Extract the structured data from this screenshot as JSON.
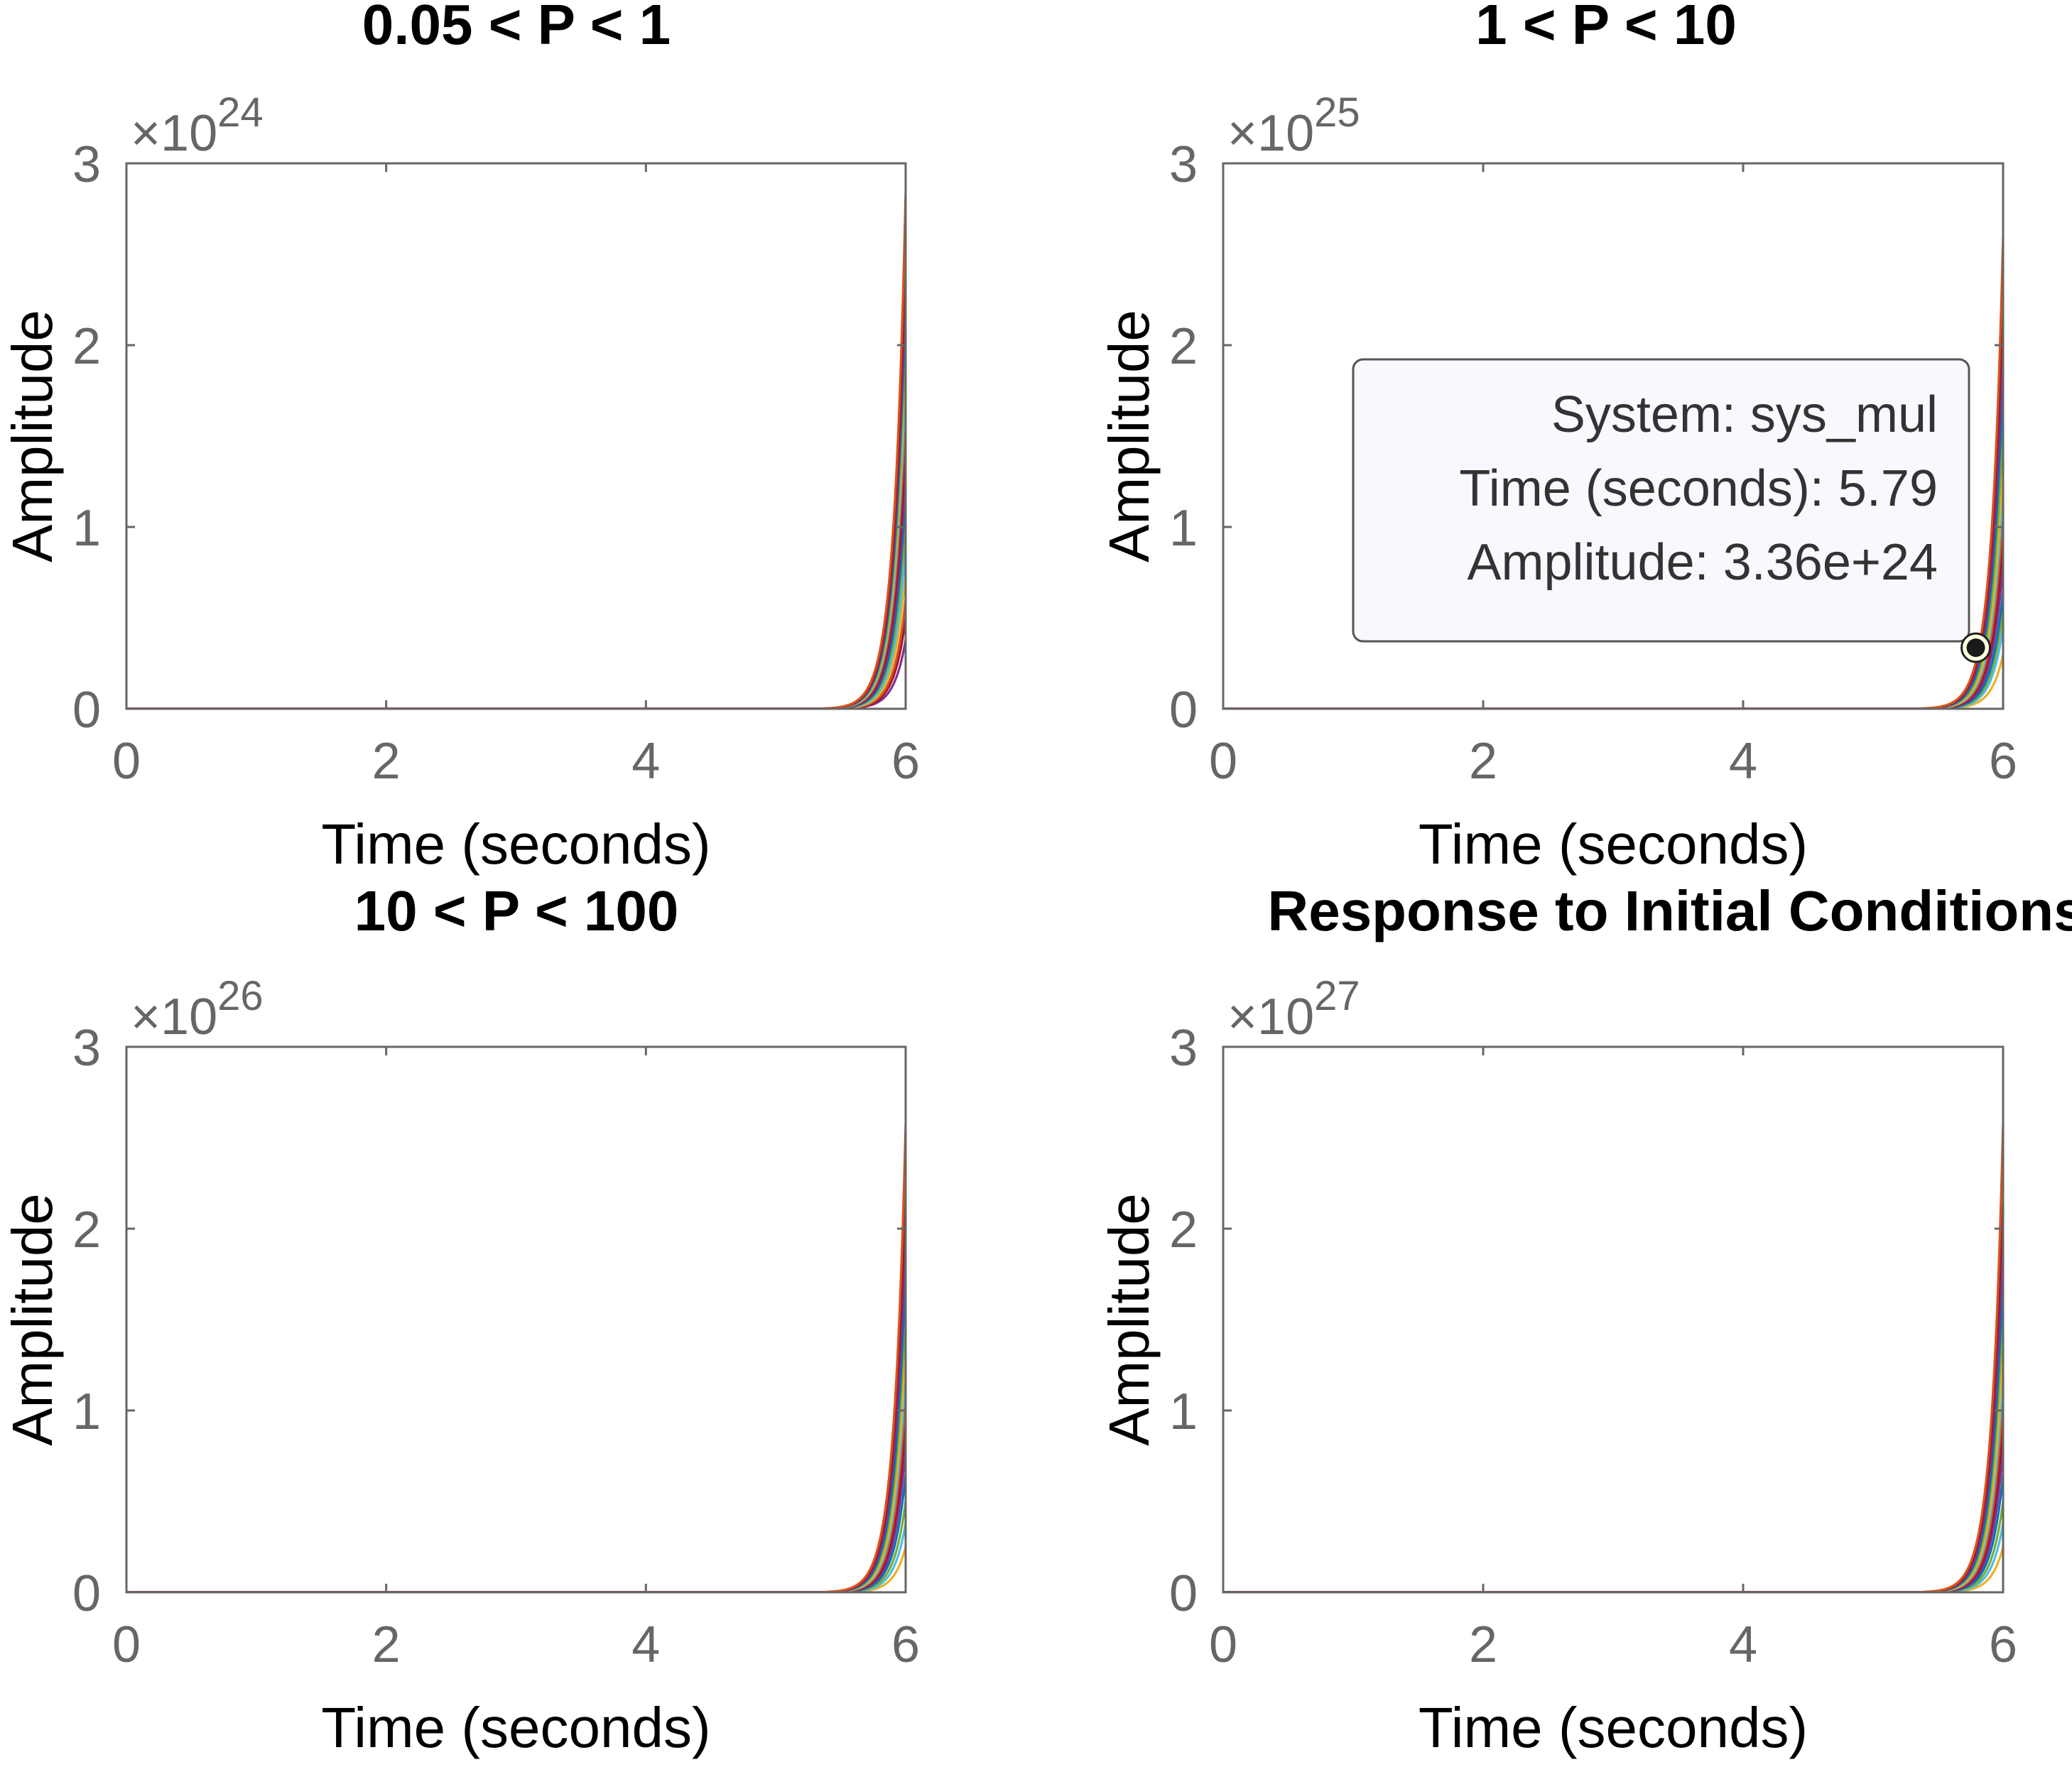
{
  "chart_data": [
    {
      "type": "line",
      "title": "0.05 < P < 1",
      "xlabel": "Time (seconds)",
      "ylabel": "Amplitude",
      "exponent_label": "×10",
      "exponent": "24",
      "xlim": [
        0,
        6
      ],
      "ylim": [
        0,
        3
      ],
      "xticks": [
        "0",
        "2",
        "4",
        "6"
      ],
      "yticks": [
        "0",
        "1",
        "2",
        "3"
      ],
      "growth_start": 5.3,
      "series_end_values": [
        2.85,
        2.6,
        2.45,
        2.3,
        2.1,
        2.0,
        1.85,
        1.7,
        1.5,
        1.35,
        1.2,
        1.05,
        0.9,
        0.75,
        0.6,
        0.5,
        0.38
      ]
    },
    {
      "type": "line",
      "title": "1 < P < 10",
      "xlabel": "Time (seconds)",
      "ylabel": "Amplitude",
      "exponent_label": "×10",
      "exponent": "25",
      "xlim": [
        0,
        6
      ],
      "ylim": [
        0,
        3
      ],
      "xticks": [
        "0",
        "2",
        "4",
        "6"
      ],
      "yticks": [
        "0",
        "1",
        "2",
        "3"
      ],
      "growth_start": 5.3,
      "series_end_values": [
        2.6,
        2.35,
        2.1,
        1.85,
        1.6,
        1.4,
        1.25,
        1.1,
        0.95,
        0.8,
        0.65,
        0.55,
        0.45,
        0.3
      ],
      "datatip": {
        "lines": [
          "System: sys_mul",
          "Time (seconds): 5.79",
          "Amplitude: 3.36e+24"
        ],
        "x": 5.79,
        "y": 0.336
      }
    },
    {
      "type": "line",
      "title": "10 < P < 100",
      "xlabel": "Time (seconds)",
      "ylabel": "Amplitude",
      "exponent_label": "×10",
      "exponent": "26",
      "xlim": [
        0,
        6
      ],
      "ylim": [
        0,
        3
      ],
      "xticks": [
        "0",
        "2",
        "4",
        "6"
      ],
      "yticks": [
        "0",
        "1",
        "2",
        "3"
      ],
      "growth_start": 5.3,
      "series_end_values": [
        2.58,
        2.3,
        2.05,
        1.8,
        1.6,
        1.4,
        1.25,
        1.1,
        0.95,
        0.8,
        0.65,
        0.5,
        0.38,
        0.25
      ]
    },
    {
      "type": "line",
      "title": "Response to Initial Conditions",
      "xlabel": "Time (seconds)",
      "ylabel": "Amplitude",
      "exponent_label": "×10",
      "exponent": "27",
      "xlim": [
        0,
        6
      ],
      "ylim": [
        0,
        3
      ],
      "xticks": [
        "0",
        "2",
        "4",
        "6"
      ],
      "yticks": [
        "0",
        "1",
        "2",
        "3"
      ],
      "growth_start": 5.3,
      "series_end_values": [
        2.58,
        2.3,
        2.05,
        1.8,
        1.6,
        1.4,
        1.25,
        1.1,
        0.95,
        0.8,
        0.65,
        0.5,
        0.38,
        0.25
      ]
    }
  ],
  "colors": {
    "axis": "#666666",
    "tick_text": "#666666",
    "label_text": "#000000",
    "title_text": "#000000",
    "datatip_bg": "#f8f8ff",
    "datatip_border": "#555555",
    "datatip_text": "#333333",
    "series": [
      "#d95319",
      "#a2142f",
      "#7e2f8e",
      "#0072bd",
      "#77ac30",
      "#edb120",
      "#4dbeee",
      "#d95319",
      "#a2142f",
      "#7e2f8e",
      "#0072bd",
      "#77ac30",
      "#4dbeee",
      "#edb120"
    ]
  }
}
